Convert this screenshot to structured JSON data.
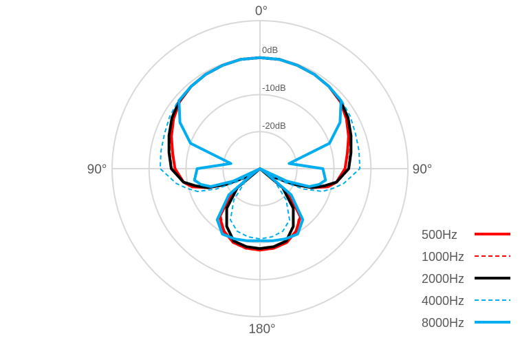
{
  "chart_data": {
    "type": "polar-line",
    "title": "",
    "angle_labels": {
      "top": "0°",
      "left": "90°",
      "right": "90°",
      "bottom": "180°"
    },
    "radial_range_db": [
      -30,
      10
    ],
    "radial_ticks": [
      {
        "value": 0,
        "label": "0dB"
      },
      {
        "value": -10,
        "label": "-10dB"
      },
      {
        "value": -20,
        "label": "-20dB"
      }
    ],
    "grid": true,
    "symmetric": true,
    "legend_position": "bottom-right",
    "angles_deg": [
      0,
      10,
      20,
      30,
      40,
      50,
      60,
      70,
      80,
      90,
      100,
      105,
      110,
      115,
      120,
      125,
      130,
      140,
      150,
      160,
      170,
      180
    ],
    "series": [
      {
        "name": "500Hz",
        "color": "#ff0000",
        "style": "solid",
        "values": [
          0,
          0,
          -0.3,
          -0.6,
          -1,
          -1.7,
          -3,
          -4.5,
          -6,
          -7,
          -9,
          -11,
          -15,
          -20,
          -25,
          -30,
          -20,
          -13,
          -10.5,
          -8.8,
          -8.2,
          -8
        ]
      },
      {
        "name": "1000Hz",
        "color": "#ff0000",
        "style": "dashed",
        "values": [
          0,
          0,
          -0.3,
          -0.6,
          -1,
          -1.6,
          -2.7,
          -4,
          -5.3,
          -6.2,
          -8.8,
          -11,
          -14.5,
          -19,
          -25,
          -30,
          -20,
          -13.5,
          -10.5,
          -8.6,
          -8,
          -7.8
        ]
      },
      {
        "name": "2000Hz",
        "color": "#000000",
        "style": "solid",
        "values": [
          0,
          0,
          -0.3,
          -0.6,
          -1,
          -1.5,
          -2.5,
          -3.8,
          -5,
          -6,
          -9,
          -12,
          -15,
          -20,
          -25,
          -30,
          -22,
          -16,
          -12,
          -9.2,
          -8.6,
          -8.4
        ]
      },
      {
        "name": "4000Hz",
        "color": "#00aeef",
        "style": "dashed",
        "values": [
          0,
          0,
          -0.3,
          -0.5,
          -0.8,
          -1.2,
          -1.8,
          -2.5,
          -2.8,
          -3,
          -7,
          -9.5,
          -12,
          -17,
          -23,
          -30,
          -25,
          -19,
          -14,
          -12,
          -11.3,
          -11
        ]
      },
      {
        "name": "8000Hz",
        "color": "#00aeef",
        "style": "solid",
        "values": [
          0,
          0,
          -0.3,
          -0.6,
          -1,
          -1.4,
          -5,
          -10,
          -22,
          -13,
          -12,
          -13.5,
          -15.8,
          -22,
          -30,
          -28,
          -19,
          -12,
          -9.6,
          -9.8,
          -10.2,
          -10.5
        ]
      }
    ]
  }
}
